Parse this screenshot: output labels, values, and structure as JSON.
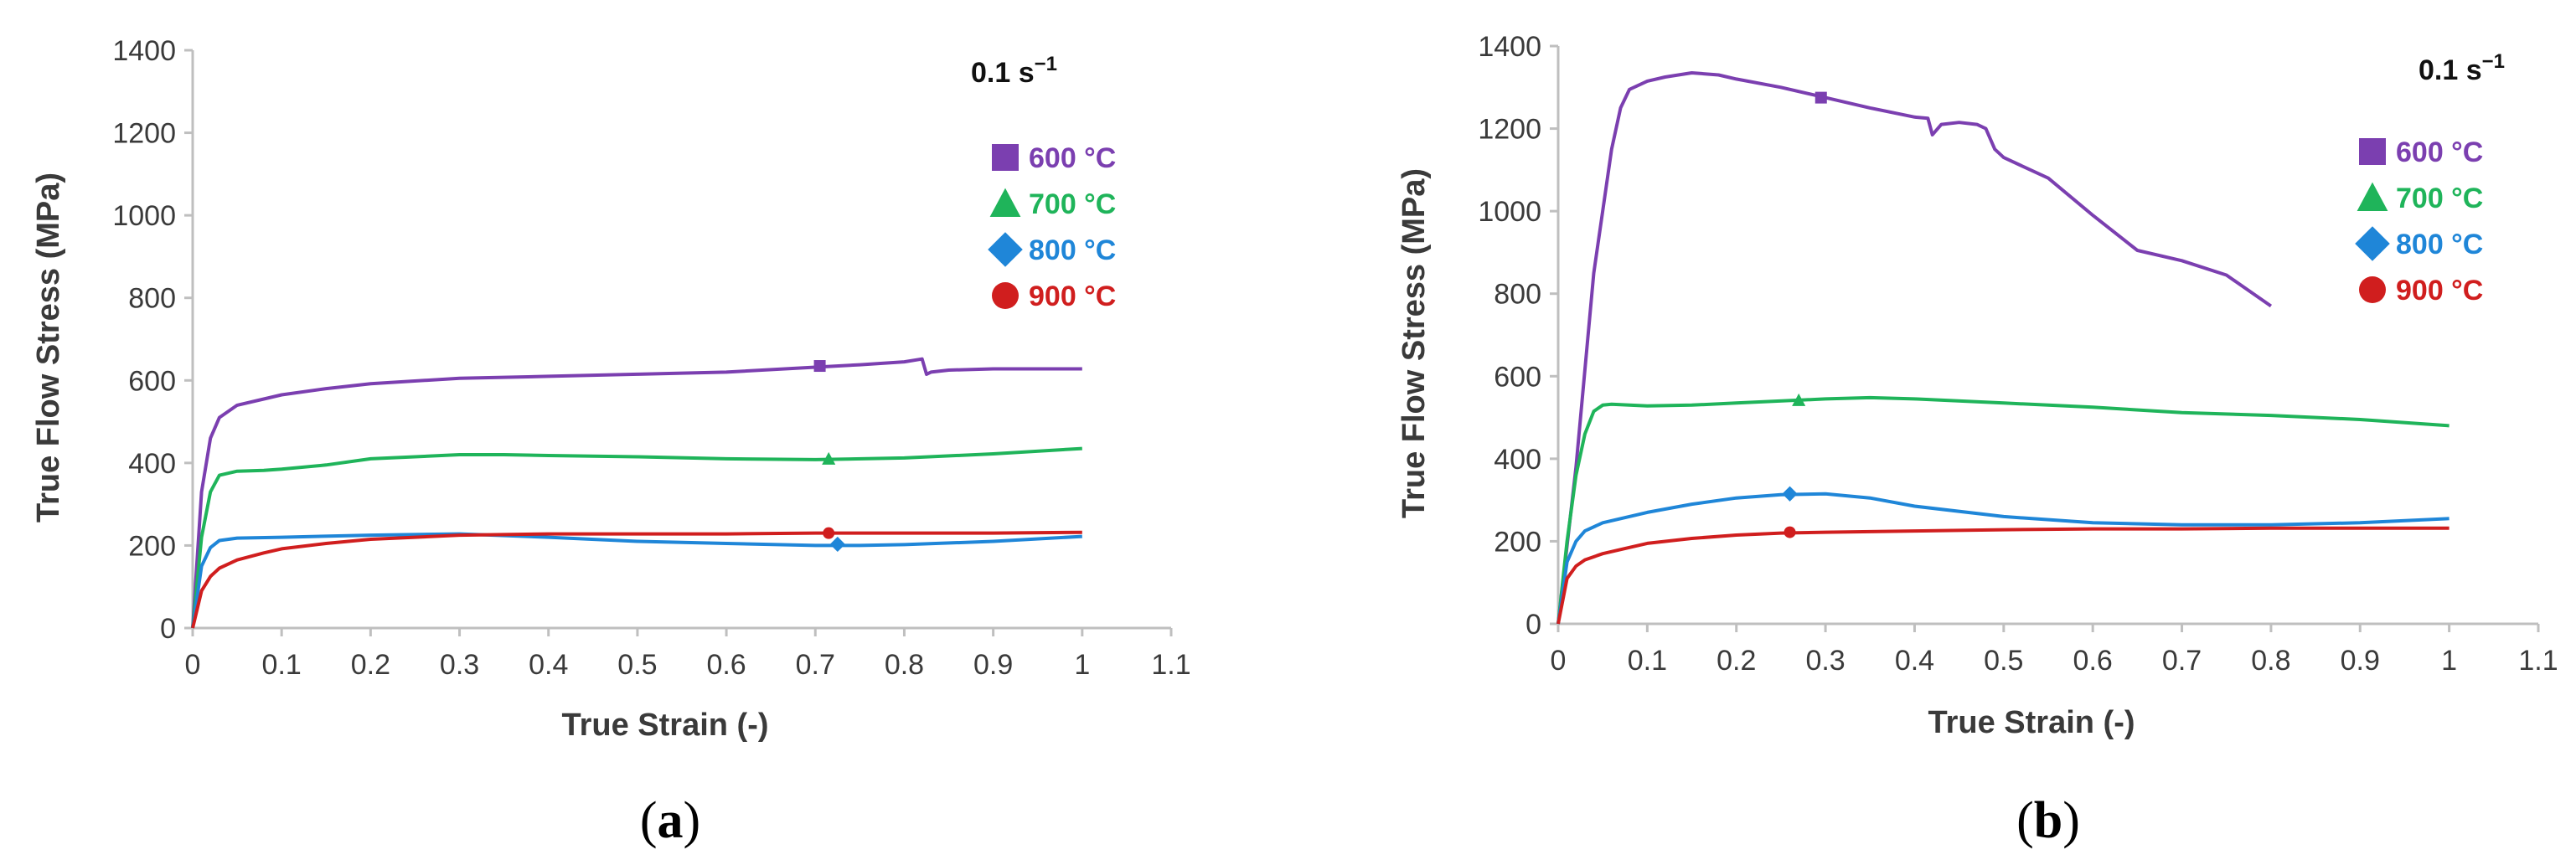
{
  "colors": {
    "600": "#7b3fb0",
    "700": "#1fb45a",
    "800": "#1f86d8",
    "900": "#d01e1e",
    "axis": "#bfbfbf",
    "text": "#3a3a3a"
  },
  "chart_data": [
    {
      "type": "line",
      "panel_label": "(a)",
      "label_open": "(",
      "label_letter": "a",
      "label_close": ")",
      "rate_label": "0.1 s",
      "rate_sup": "−1",
      "xlabel": "True Strain (-)",
      "ylabel": "True Flow Stress (MPa)",
      "xlim": [
        0,
        1.1
      ],
      "ylim": [
        0,
        1400
      ],
      "x_ticks": [
        "0",
        "0.1",
        "0.2",
        "0.3",
        "0.4",
        "0.5",
        "0.6",
        "0.7",
        "0.8",
        "0.9",
        "1",
        "1.1"
      ],
      "y_ticks": [
        "0",
        "200",
        "400",
        "600",
        "800",
        "1000",
        "1200",
        "1400"
      ],
      "legend_position": "right",
      "series": [
        {
          "name": "600 °C",
          "key": "600",
          "marker": "square",
          "marker_at": [
            0.705,
            635
          ],
          "x": [
            0,
            0.01,
            0.02,
            0.03,
            0.05,
            0.08,
            0.1,
            0.15,
            0.2,
            0.3,
            0.4,
            0.5,
            0.6,
            0.7,
            0.75,
            0.8,
            0.82,
            0.825,
            0.83,
            0.85,
            0.9,
            0.95,
            1.0
          ],
          "y": [
            0,
            330,
            460,
            510,
            540,
            555,
            565,
            580,
            592,
            605,
            610,
            615,
            620,
            632,
            638,
            645,
            652,
            615,
            620,
            625,
            628,
            628,
            628
          ]
        },
        {
          "name": "700 °C",
          "key": "700",
          "marker": "triangle",
          "marker_at": [
            0.715,
            410
          ],
          "x": [
            0,
            0.01,
            0.02,
            0.03,
            0.05,
            0.08,
            0.1,
            0.15,
            0.2,
            0.3,
            0.35,
            0.4,
            0.5,
            0.6,
            0.7,
            0.8,
            0.9,
            1.0
          ],
          "y": [
            0,
            220,
            330,
            370,
            380,
            382,
            385,
            395,
            410,
            420,
            420,
            418,
            415,
            410,
            408,
            412,
            422,
            435
          ]
        },
        {
          "name": "800 °C",
          "key": "800",
          "marker": "diamond",
          "marker_at": [
            0.725,
            203
          ],
          "x": [
            0,
            0.01,
            0.02,
            0.03,
            0.05,
            0.1,
            0.2,
            0.3,
            0.4,
            0.5,
            0.6,
            0.7,
            0.75,
            0.8,
            0.9,
            1.0
          ],
          "y": [
            0,
            150,
            195,
            212,
            218,
            220,
            225,
            228,
            220,
            210,
            205,
            200,
            200,
            202,
            210,
            222
          ]
        },
        {
          "name": "900 °C",
          "key": "900",
          "marker": "circle",
          "marker_at": [
            0.715,
            230
          ],
          "x": [
            0,
            0.01,
            0.02,
            0.03,
            0.05,
            0.08,
            0.1,
            0.15,
            0.2,
            0.25,
            0.3,
            0.4,
            0.5,
            0.6,
            0.7,
            0.8,
            0.9,
            1.0
          ],
          "y": [
            0,
            90,
            125,
            145,
            165,
            182,
            192,
            205,
            215,
            220,
            225,
            228,
            228,
            228,
            230,
            230,
            230,
            232
          ]
        }
      ]
    },
    {
      "type": "line",
      "panel_label": "(b)",
      "label_open": "(",
      "label_letter": "b",
      "label_close": ")",
      "rate_label": "0.1 s",
      "rate_sup": "−1",
      "xlabel": "True Strain (-)",
      "ylabel": "True Flow Stress (MPa)",
      "xlim": [
        0,
        1.1
      ],
      "ylim": [
        0,
        1400
      ],
      "x_ticks": [
        "0",
        "0.1",
        "0.2",
        "0.3",
        "0.4",
        "0.5",
        "0.6",
        "0.7",
        "0.8",
        "0.9",
        "1",
        "1.1"
      ],
      "y_ticks": [
        "0",
        "200",
        "400",
        "600",
        "800",
        "1000",
        "1200",
        "1400"
      ],
      "legend_position": "right",
      "series": [
        {
          "name": "600 °C",
          "key": "600",
          "marker": "square",
          "marker_at": [
            0.295,
            1275
          ],
          "x": [
            0,
            0.02,
            0.04,
            0.06,
            0.07,
            0.08,
            0.1,
            0.12,
            0.15,
            0.18,
            0.2,
            0.25,
            0.3,
            0.35,
            0.4,
            0.415,
            0.42,
            0.43,
            0.45,
            0.47,
            0.48,
            0.49,
            0.5,
            0.55,
            0.6,
            0.65,
            0.7,
            0.75,
            0.8
          ],
          "y": [
            0,
            380,
            850,
            1150,
            1250,
            1295,
            1315,
            1325,
            1335,
            1330,
            1320,
            1300,
            1275,
            1250,
            1228,
            1225,
            1185,
            1210,
            1215,
            1210,
            1200,
            1150,
            1130,
            1080,
            990,
            905,
            880,
            845,
            770
          ]
        },
        {
          "name": "700 °C",
          "key": "700",
          "marker": "triangle",
          "marker_at": [
            0.27,
            542
          ],
          "x": [
            0,
            0.01,
            0.02,
            0.03,
            0.04,
            0.05,
            0.06,
            0.1,
            0.15,
            0.2,
            0.3,
            0.35,
            0.4,
            0.5,
            0.6,
            0.7,
            0.8,
            0.9,
            1.0
          ],
          "y": [
            0,
            200,
            360,
            460,
            515,
            530,
            532,
            528,
            530,
            535,
            545,
            548,
            545,
            535,
            525,
            512,
            505,
            495,
            480
          ]
        },
        {
          "name": "800 °C",
          "key": "800",
          "marker": "diamond",
          "marker_at": [
            0.26,
            315
          ],
          "x": [
            0,
            0.01,
            0.02,
            0.03,
            0.05,
            0.1,
            0.15,
            0.2,
            0.25,
            0.3,
            0.35,
            0.4,
            0.5,
            0.6,
            0.7,
            0.8,
            0.9,
            1.0
          ],
          "y": [
            0,
            150,
            200,
            225,
            245,
            270,
            290,
            305,
            313,
            315,
            305,
            285,
            260,
            245,
            240,
            240,
            245,
            255
          ]
        },
        {
          "name": "900 °C",
          "key": "900",
          "marker": "circle",
          "marker_at": [
            0.26,
            222
          ],
          "x": [
            0,
            0.01,
            0.02,
            0.03,
            0.05,
            0.08,
            0.1,
            0.15,
            0.2,
            0.25,
            0.3,
            0.4,
            0.5,
            0.6,
            0.7,
            0.8,
            0.9,
            1.0
          ],
          "y": [
            0,
            110,
            140,
            155,
            170,
            185,
            195,
            207,
            215,
            220,
            222,
            225,
            228,
            230,
            230,
            232,
            232,
            232
          ]
        }
      ]
    }
  ]
}
